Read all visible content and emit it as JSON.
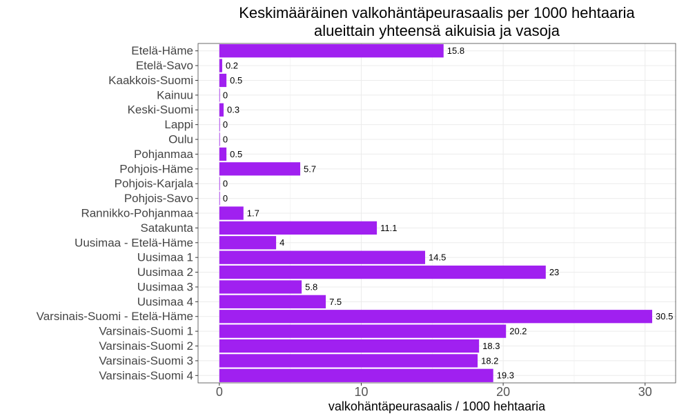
{
  "chart_data": {
    "type": "bar",
    "orientation": "horizontal",
    "title": [
      "Keskimääräinen valkohäntäpeurasaalis per 1000 hehtaaria",
      "alueittain yhteensä aikuisia ja vasoja"
    ],
    "x_label": "valkohäntäpeurasaalis / 1000 hehtaaria",
    "categories": [
      "Etelä-Häme",
      "Etelä-Savo",
      "Kaakkois-Suomi",
      "Kainuu",
      "Keski-Suomi",
      "Lappi",
      "Oulu",
      "Pohjanmaa",
      "Pohjois-Häme",
      "Pohjois-Karjala",
      "Pohjois-Savo",
      "Rannikko-Pohjanmaa",
      "Satakunta",
      "Uusimaa - Etelä-Häme",
      "Uusimaa 1",
      "Uusimaa 2",
      "Uusimaa 3",
      "Uusimaa 4",
      "Varsinais-Suomi - Etelä-Häme",
      "Varsinais-Suomi 1",
      "Varsinais-Suomi 2",
      "Varsinais-Suomi 3",
      "Varsinais-Suomi 4"
    ],
    "values": [
      15.8,
      0.2,
      0.5,
      0,
      0.3,
      0,
      0,
      0.5,
      5.7,
      0,
      0,
      1.7,
      11.1,
      4,
      14.5,
      23,
      5.8,
      7.5,
      30.5,
      20.2,
      18.3,
      18.2,
      19.3
    ],
    "color": "#a020f0",
    "xlim": [
      -1.5,
      32.2
    ],
    "xticks": [
      0,
      10,
      20,
      30
    ],
    "x_minor_ticks": [
      5,
      15,
      25
    ],
    "grid": true
  }
}
